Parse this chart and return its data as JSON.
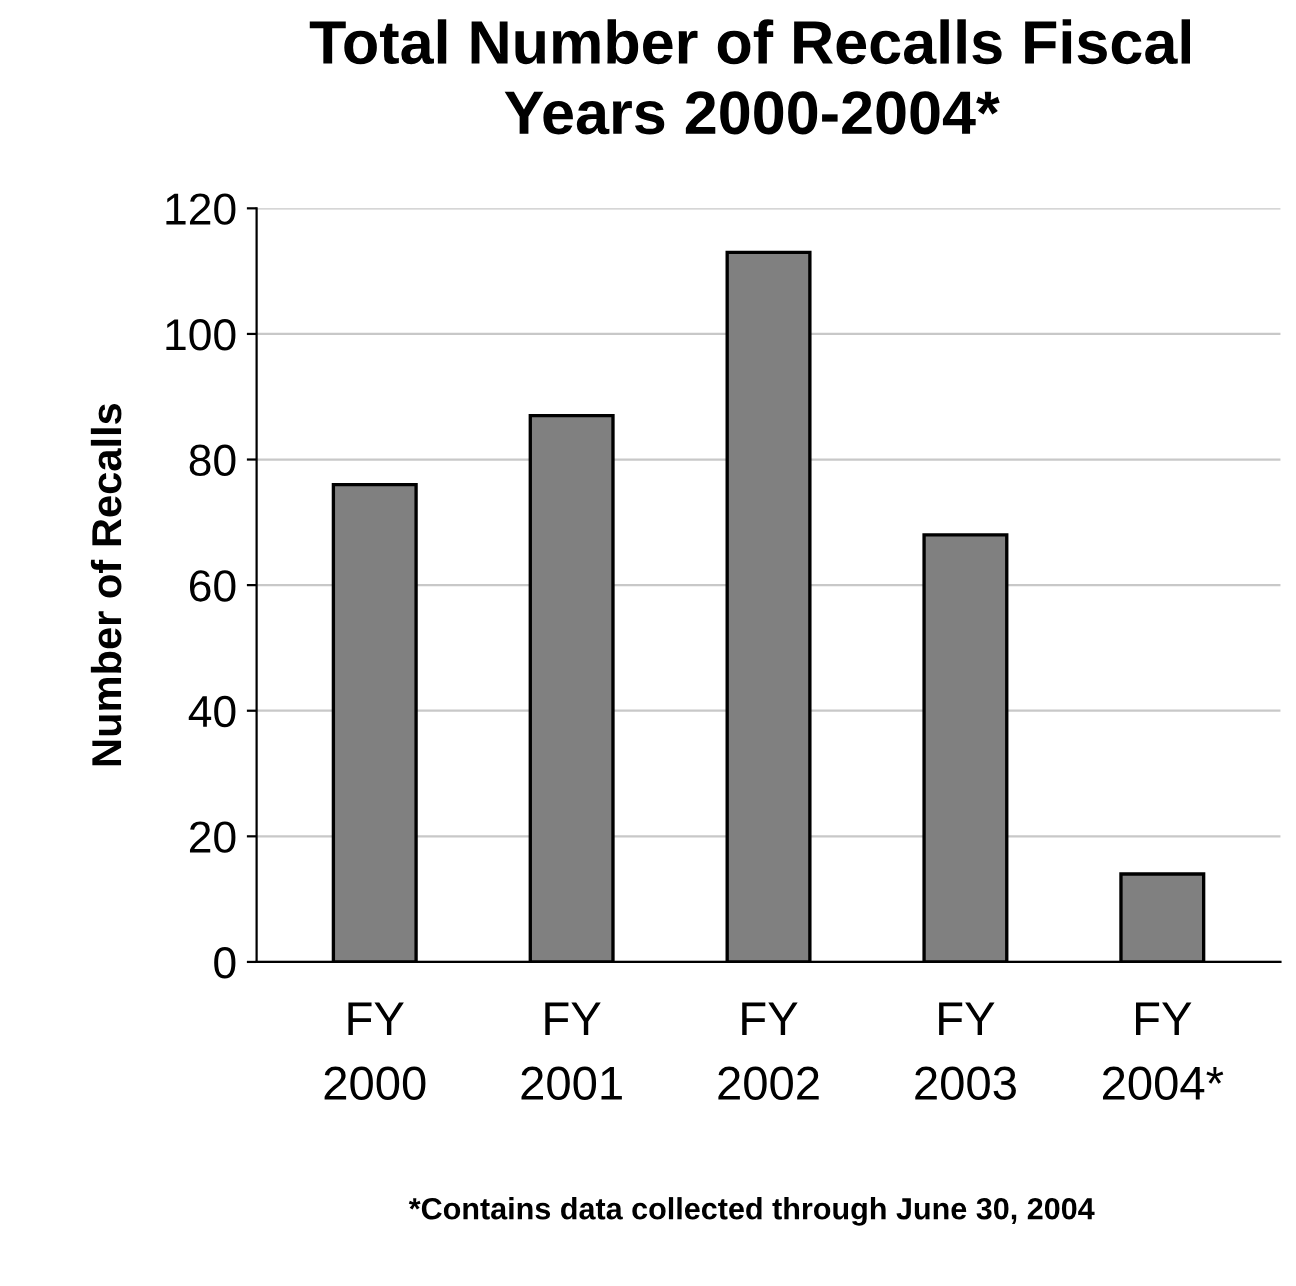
{
  "chart_data": {
    "type": "bar",
    "title": "Total Number of Recalls Fiscal\nYears 2000-2004*",
    "ylabel": "Number of Recalls",
    "categories": [
      "FY\n2000",
      "FY\n2001",
      "FY\n2002",
      "FY\n2003",
      "FY\n2004*"
    ],
    "values": [
      76,
      87,
      113,
      68,
      14
    ],
    "color": "#808080",
    "ylim": [
      0,
      120
    ],
    "yticks": [
      0,
      20,
      40,
      60,
      80,
      100,
      120
    ],
    "grid": "y",
    "annotations": [
      "*Contains data collected through June 30, 2004"
    ]
  }
}
